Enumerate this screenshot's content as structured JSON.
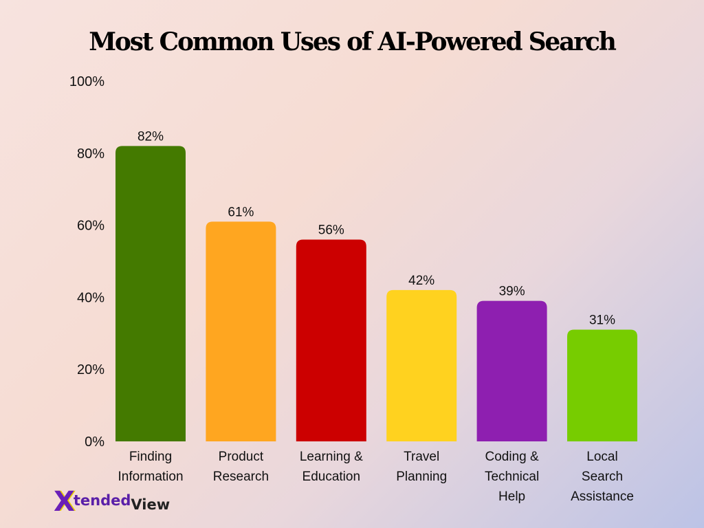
{
  "chart_data": {
    "type": "bar",
    "title": "Most Common Uses of AI-Powered Search",
    "xlabel": "",
    "ylabel": "",
    "ylim": [
      0,
      100
    ],
    "yticks": [
      "0%",
      "20%",
      "40%",
      "60%",
      "80%",
      "100%"
    ],
    "ytick_values": [
      0,
      20,
      40,
      60,
      80,
      100
    ],
    "grid": false,
    "categories": [
      [
        "Finding",
        "Information"
      ],
      [
        "Product",
        "Research"
      ],
      [
        "Learning &",
        "Education"
      ],
      [
        "Travel",
        "Planning"
      ],
      [
        "Coding &",
        "Technical",
        "Help"
      ],
      [
        "Local",
        "Search",
        "Assistance"
      ]
    ],
    "values": [
      82,
      61,
      56,
      42,
      39,
      31
    ],
    "value_labels": [
      "82%",
      "61%",
      "56%",
      "42%",
      "39%",
      "31%"
    ],
    "colors": [
      "#447a00",
      "#ffa620",
      "#cc0000",
      "#ffd21f",
      "#8e1fb0",
      "#77cc00"
    ]
  },
  "logo": {
    "mark": "X",
    "text_a": "tended",
    "text_b": "View"
  }
}
